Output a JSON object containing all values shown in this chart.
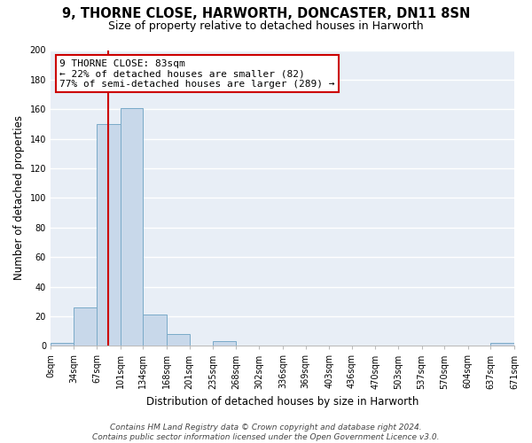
{
  "title_line1": "9, THORNE CLOSE, HARWORTH, DONCASTER, DN11 8SN",
  "title_line2": "Size of property relative to detached houses in Harworth",
  "xlabel": "Distribution of detached houses by size in Harworth",
  "ylabel": "Number of detached properties",
  "bin_edges": [
    0,
    34,
    67,
    101,
    134,
    168,
    201,
    235,
    268,
    302,
    336,
    369,
    403,
    436,
    470,
    503,
    537,
    570,
    604,
    637,
    671
  ],
  "bin_counts": [
    2,
    26,
    150,
    161,
    21,
    8,
    0,
    3,
    0,
    0,
    0,
    0,
    0,
    0,
    0,
    0,
    0,
    0,
    0,
    2
  ],
  "bar_color": "#c8d8ea",
  "bar_edge_color": "#7aaac8",
  "property_line_x": 83,
  "property_line_color": "#cc0000",
  "annotation_title": "9 THORNE CLOSE: 83sqm",
  "annotation_line1": "← 22% of detached houses are smaller (82)",
  "annotation_line2": "77% of semi-detached houses are larger (289) →",
  "annotation_box_facecolor": "#ffffff",
  "annotation_box_edgecolor": "#cc0000",
  "ylim": [
    0,
    200
  ],
  "yticks": [
    0,
    20,
    40,
    60,
    80,
    100,
    120,
    140,
    160,
    180,
    200
  ],
  "xtick_labels": [
    "0sqm",
    "34sqm",
    "67sqm",
    "101sqm",
    "134sqm",
    "168sqm",
    "201sqm",
    "235sqm",
    "268sqm",
    "302sqm",
    "336sqm",
    "369sqm",
    "403sqm",
    "436sqm",
    "470sqm",
    "503sqm",
    "537sqm",
    "570sqm",
    "604sqm",
    "637sqm",
    "671sqm"
  ],
  "footer_line1": "Contains HM Land Registry data © Crown copyright and database right 2024.",
  "footer_line2": "Contains public sector information licensed under the Open Government Licence v3.0.",
  "fig_bg_color": "#ffffff",
  "plot_bg_color": "#e8eef6",
  "grid_color": "#ffffff",
  "title_fontsize": 10.5,
  "subtitle_fontsize": 9,
  "axis_label_fontsize": 8.5,
  "tick_fontsize": 7,
  "footer_fontsize": 6.5,
  "annotation_fontsize": 8
}
